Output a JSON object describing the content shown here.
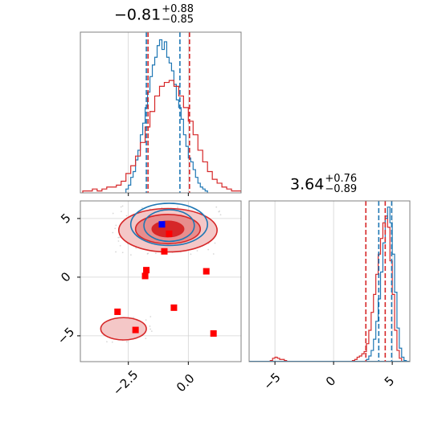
{
  "chart_data": [
    {
      "type": "histogram",
      "panel": "marginal-x",
      "title": {
        "median": "−0.81",
        "upper": "+0.88",
        "lower": "−0.85"
      },
      "xlim": [
        -4.5,
        2.2
      ],
      "x_ticks": [
        -2.5,
        0.0
      ],
      "quantile_lines": [
        {
          "color": "#1f77b4",
          "values": [
            -1.75,
            -0.35
          ]
        },
        {
          "color": "#d62728",
          "values": [
            -1.68,
            0.05
          ]
        }
      ],
      "series": [
        {
          "color": "#1f77b4",
          "bins": [
            -2.6,
            -2.5,
            -2.4,
            -2.3,
            -2.2,
            -2.1,
            -2.0,
            -1.9,
            -1.8,
            -1.7,
            -1.6,
            -1.5,
            -1.4,
            -1.3,
            -1.2,
            -1.1,
            -1.0,
            -0.9,
            -0.8,
            -0.7,
            -0.6,
            -0.5,
            -0.4,
            -0.3,
            -0.2,
            -0.1,
            0.0,
            0.1,
            0.2,
            0.3,
            0.4,
            0.5,
            0.6,
            0.7
          ],
          "counts": [
            2,
            4,
            8,
            11,
            17,
            22,
            30,
            36,
            44,
            52,
            60,
            66,
            70,
            76,
            79,
            74,
            78,
            70,
            67,
            63,
            56,
            48,
            44,
            38,
            30,
            24,
            18,
            16,
            12,
            8,
            5,
            3,
            2,
            1
          ]
        },
        {
          "color": "#d62728",
          "bins": [
            -4.4,
            -4.2,
            -4.0,
            -3.8,
            -3.6,
            -3.4,
            -3.2,
            -3.0,
            -2.8,
            -2.6,
            -2.4,
            -2.2,
            -2.0,
            -1.8,
            -1.6,
            -1.4,
            -1.2,
            -1.0,
            -0.8,
            -0.6,
            -0.4,
            -0.2,
            0.0,
            0.2,
            0.4,
            0.6,
            0.8,
            1.0,
            1.2,
            1.4,
            1.6,
            1.8,
            2.0
          ],
          "counts": [
            1,
            1,
            2,
            1,
            2,
            3,
            3,
            4,
            6,
            10,
            14,
            19,
            26,
            34,
            42,
            50,
            55,
            57,
            58,
            55,
            50,
            44,
            37,
            30,
            22,
            16,
            11,
            7,
            5,
            3,
            2,
            1,
            1
          ]
        }
      ]
    },
    {
      "type": "contour",
      "panel": "joint",
      "xlim": [
        -4.5,
        2.2
      ],
      "ylim": [
        -7.2,
        6.5
      ],
      "x_ticks": [
        -2.5,
        0.0
      ],
      "x_tick_labels": [
        "−2.5",
        "0.0"
      ],
      "y_ticks": [
        -5,
        0,
        5
      ],
      "y_tick_labels": [
        "−5",
        "0",
        "5"
      ],
      "series": [
        {
          "name": "",
          "color": "#1f77b4",
          "levels": [
            {
              "cx": -0.8,
              "cy": 4.4,
              "rx": 1.05,
              "ry": 1.35
            },
            {
              "cx": -0.8,
              "cy": 4.5,
              "rx": 1.6,
              "ry": 1.8
            }
          ]
        },
        {
          "name": "",
          "color": "#d62728",
          "levels": [
            {
              "cx": -0.85,
              "cy": 4.1,
              "rx": 1.35,
              "ry": 1.25
            },
            {
              "cx": -0.85,
              "cy": 4.0,
              "rx": 2.05,
              "ry": 1.85
            },
            {
              "cx": -2.7,
              "cy": -4.4,
              "rx": 0.95,
              "ry": 0.95
            }
          ]
        }
      ],
      "points_red": [
        [
          -0.8,
          3.7
        ],
        [
          -1.0,
          2.2
        ],
        [
          -1.75,
          0.6
        ],
        [
          -1.8,
          0.1
        ],
        [
          0.75,
          0.5
        ],
        [
          -2.95,
          -2.95
        ],
        [
          -0.6,
          -2.6
        ],
        [
          -2.2,
          -4.5
        ],
        [
          1.05,
          -4.8
        ]
      ],
      "points_blue": [
        [
          -1.1,
          4.5
        ]
      ]
    },
    {
      "type": "histogram",
      "panel": "marginal-y",
      "title": {
        "median": "3.64",
        "upper": "+0.76",
        "lower": "−0.89"
      },
      "xlim": [
        -7.2,
        6.5
      ],
      "x_ticks": [
        -5,
        0,
        5
      ],
      "x_tick_labels": [
        "−5",
        "0",
        "5"
      ],
      "quantile_lines": [
        {
          "color": "#d62728",
          "values": [
            2.75,
            4.4
          ]
        },
        {
          "color": "#1f77b4",
          "values": [
            3.85,
            4.95
          ]
        }
      ],
      "series": [
        {
          "color": "#d62728",
          "bins": [
            -5.4,
            -5.2,
            -5.0,
            -4.8,
            -4.6,
            -4.4,
            -4.2,
            1.6,
            1.8,
            2.0,
            2.2,
            2.4,
            2.6,
            2.8,
            3.0,
            3.2,
            3.4,
            3.6,
            3.8,
            4.0,
            4.2,
            4.4,
            4.6,
            4.8,
            5.0,
            5.2,
            5.4,
            5.6
          ],
          "counts": [
            1,
            3,
            4,
            3,
            2,
            2,
            1,
            1,
            2,
            4,
            5,
            7,
            9,
            16,
            28,
            44,
            60,
            78,
            96,
            110,
            124,
            130,
            120,
            90,
            60,
            28,
            10,
            3
          ]
        },
        {
          "color": "#1f77b4",
          "bins": [
            2.8,
            3.0,
            3.2,
            3.4,
            3.6,
            3.8,
            4.0,
            4.2,
            4.4,
            4.6,
            4.8,
            5.0,
            5.2,
            5.4,
            5.6,
            5.8,
            6.0
          ],
          "counts": [
            2,
            5,
            10,
            20,
            36,
            56,
            80,
            106,
            128,
            138,
            124,
            96,
            62,
            30,
            12,
            4,
            1
          ]
        }
      ]
    }
  ]
}
